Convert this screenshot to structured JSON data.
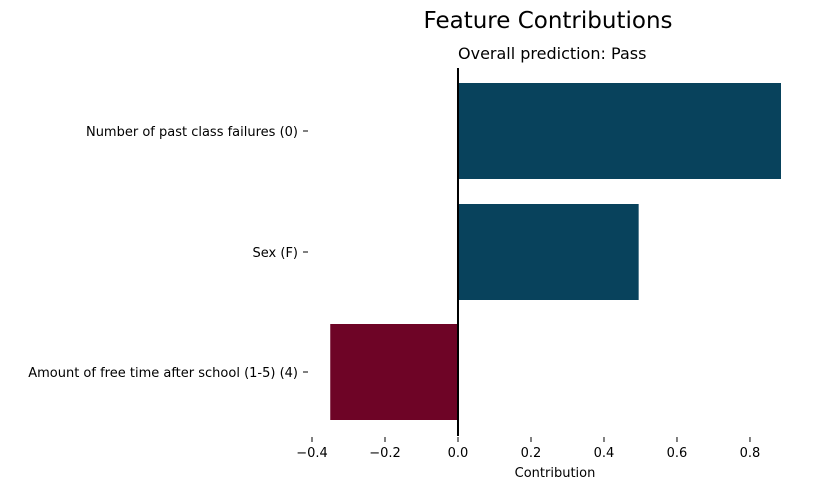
{
  "chart_data": {
    "type": "bar",
    "orientation": "horizontal",
    "title": "Feature Contributions",
    "subtitle": "Overall prediction: Pass",
    "xlabel": "Contribution",
    "ylabel": "",
    "categories": [
      "Number of past class failures (0)",
      "Sex (F)",
      "Amount of free time after school (1-5) (4)"
    ],
    "values": [
      0.885,
      0.495,
      -0.35
    ],
    "xlim": [
      -0.4,
      0.885
    ],
    "x_ticks": [
      -0.4,
      -0.2,
      0.0,
      0.2,
      0.4,
      0.6,
      0.8
    ],
    "x_tick_labels": [
      "−0.4",
      "−0.2",
      "0.0",
      "0.2",
      "0.4",
      "0.6",
      "0.8"
    ],
    "colors": {
      "positive": "#08425c",
      "negative": "#6e0426"
    },
    "grid": false,
    "legend": "none"
  }
}
